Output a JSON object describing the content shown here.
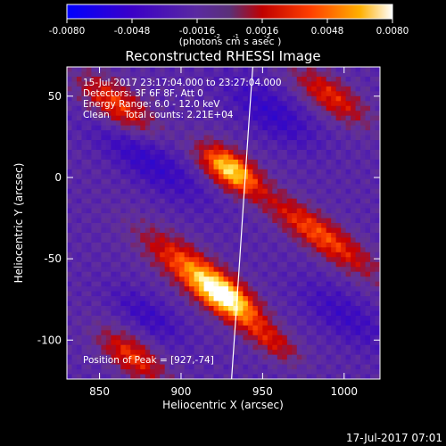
{
  "chart_data": {
    "type": "heatmap",
    "title": "Reconstructed RHESSI Image",
    "xlabel": "Heliocentric X (arcsec)",
    "ylabel": "Heliocentric Y (arcsec)",
    "xlim": [
      830,
      1022
    ],
    "ylim": [
      -124,
      68
    ],
    "x_ticks": [
      "850",
      "900",
      "950",
      "1000"
    ],
    "y_ticks": [
      "50",
      "0",
      "-50",
      "-100"
    ],
    "x_tick_values": [
      850,
      900,
      950,
      1000
    ],
    "y_tick_values": [
      50,
      0,
      -50,
      -100
    ],
    "colorbar": {
      "range": [
        -0.008,
        0.008
      ],
      "tick_labels": [
        "-0.0080",
        "-0.0048",
        "-0.0016",
        "0.0016",
        "0.0048",
        "0.0080"
      ],
      "tick_values": [
        -0.008,
        -0.0048,
        -0.0016,
        0.0016,
        0.0048,
        0.008
      ],
      "units_label": "(photons cm   s   asec  )",
      "units_exponents": [
        "-2",
        "-1",
        "-2"
      ]
    },
    "annotations": [
      "15-Jul-2017 23:17:04.000 to 23:27:04.000",
      "Detectors: 3F 6F 8F, Att 0",
      "Energy Range: 6.0 - 12.0 keV",
      "Clean     Total counts: 2.21E+04"
    ],
    "peak_label": "Position of Peak = [927,-74]",
    "peak": [
      927,
      -74
    ],
    "limb_points": [
      [
        944,
        68
      ],
      [
        942,
        40
      ],
      [
        940,
        10
      ],
      [
        938,
        -20
      ],
      [
        936,
        -50
      ],
      [
        934,
        -80
      ],
      [
        931,
        -124
      ]
    ],
    "sources": [
      {
        "x": 930,
        "y": 5,
        "amplitude": 0.0082,
        "sigma_along": 14,
        "sigma_across": 7,
        "angle_deg": -35
      },
      {
        "x": 927,
        "y": -74,
        "amplitude": 0.0085,
        "sigma_along": 16,
        "sigma_across": 7,
        "angle_deg": -35
      },
      {
        "x": 905,
        "y": -55,
        "amplitude": 0.005,
        "sigma_along": 24,
        "sigma_across": 8,
        "angle_deg": -35
      },
      {
        "x": 985,
        "y": -35,
        "amplitude": 0.0052,
        "sigma_along": 28,
        "sigma_across": 7,
        "angle_deg": -35
      },
      {
        "x": 860,
        "y": 45,
        "amplitude": 0.0048,
        "sigma_along": 18,
        "sigma_across": 8,
        "angle_deg": -35
      },
      {
        "x": 992,
        "y": 50,
        "amplitude": 0.0042,
        "sigma_along": 18,
        "sigma_across": 7,
        "angle_deg": -35
      },
      {
        "x": 870,
        "y": -110,
        "amplitude": 0.0045,
        "sigma_along": 16,
        "sigma_across": 7,
        "angle_deg": -35
      },
      {
        "x": 955,
        "y": -100,
        "amplitude": 0.0035,
        "sigma_along": 14,
        "sigma_across": 6,
        "angle_deg": -35
      },
      {
        "x": 880,
        "y": 10,
        "amplitude": -0.0025,
        "sigma_along": 28,
        "sigma_across": 9,
        "angle_deg": -35
      },
      {
        "x": 955,
        "y": 40,
        "amplitude": -0.0025,
        "sigma_along": 22,
        "sigma_across": 9,
        "angle_deg": -35
      },
      {
        "x": 1000,
        "y": -85,
        "amplitude": -0.002,
        "sigma_along": 22,
        "sigma_across": 9,
        "angle_deg": -35
      },
      {
        "x": 880,
        "y": -85,
        "amplitude": -0.002,
        "sigma_along": 18,
        "sigma_across": 7,
        "angle_deg": -35
      }
    ]
  },
  "footer": {
    "timestamp": "17-Jul-2017 07:01"
  }
}
